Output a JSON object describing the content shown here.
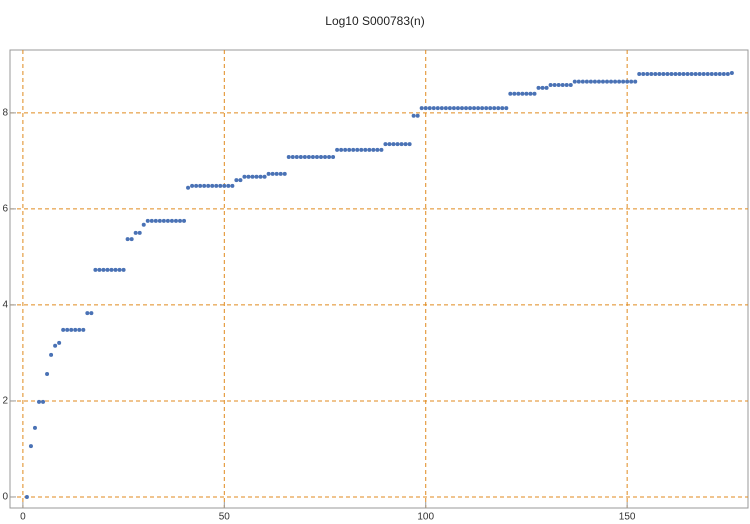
{
  "chart_data": {
    "type": "scatter",
    "title": "Log10 S000783(n)",
    "x": [
      1,
      2,
      3,
      4,
      5,
      6,
      7,
      8,
      9,
      10,
      11,
      12,
      13,
      14,
      15,
      16,
      17,
      18,
      19,
      20,
      21,
      22,
      23,
      24,
      25,
      26,
      27,
      28,
      29,
      30,
      31,
      32,
      33,
      34,
      35,
      36,
      37,
      38,
      39,
      40,
      41,
      42,
      43,
      44,
      45,
      46,
      47,
      48,
      49,
      50,
      51,
      52,
      53,
      54,
      55,
      56,
      57,
      58,
      59,
      60,
      61,
      62,
      63,
      64,
      65,
      66,
      67,
      68,
      69,
      70,
      71,
      72,
      73,
      74,
      75,
      76,
      77,
      78,
      79,
      80,
      81,
      82,
      83,
      84,
      85,
      86,
      87,
      88,
      89,
      90,
      91,
      92,
      93,
      94,
      95,
      96,
      97,
      98,
      99,
      100,
      101,
      102,
      103,
      104,
      105,
      106,
      107,
      108,
      109,
      110,
      111,
      112,
      113,
      114,
      115,
      116,
      117,
      118,
      119,
      120,
      121,
      122,
      123,
      124,
      125,
      126,
      127,
      128,
      129,
      130,
      131,
      132,
      133,
      134,
      135,
      136,
      137,
      138,
      139,
      140,
      141,
      142,
      143,
      144,
      145,
      146,
      147,
      148,
      149,
      150,
      151,
      152,
      153,
      154,
      155,
      156,
      157,
      158,
      159,
      160,
      161,
      162,
      163,
      164,
      165,
      166,
      167,
      168,
      169,
      170,
      171,
      172,
      173,
      174,
      175,
      176
    ],
    "values": [
      0,
      1.06,
      1.44,
      1.98,
      1.98,
      2.56,
      2.96,
      3.15,
      3.21,
      3.48,
      3.48,
      3.48,
      3.48,
      3.48,
      3.48,
      3.83,
      3.83,
      4.73,
      4.73,
      4.73,
      4.73,
      4.73,
      4.73,
      4.73,
      4.73,
      5.37,
      5.37,
      5.5,
      5.5,
      5.67,
      5.75,
      5.75,
      5.75,
      5.75,
      5.75,
      5.75,
      5.75,
      5.75,
      5.75,
      5.75,
      6.44,
      6.48,
      6.48,
      6.48,
      6.48,
      6.48,
      6.48,
      6.48,
      6.48,
      6.48,
      6.48,
      6.48,
      6.6,
      6.6,
      6.67,
      6.67,
      6.67,
      6.67,
      6.67,
      6.67,
      6.73,
      6.73,
      6.73,
      6.73,
      6.73,
      7.08,
      7.08,
      7.08,
      7.08,
      7.08,
      7.08,
      7.08,
      7.08,
      7.08,
      7.08,
      7.08,
      7.08,
      7.23,
      7.23,
      7.23,
      7.23,
      7.23,
      7.23,
      7.23,
      7.23,
      7.23,
      7.23,
      7.23,
      7.23,
      7.35,
      7.35,
      7.35,
      7.35,
      7.35,
      7.35,
      7.35,
      7.94,
      7.94,
      8.1,
      8.1,
      8.1,
      8.1,
      8.1,
      8.1,
      8.1,
      8.1,
      8.1,
      8.1,
      8.1,
      8.1,
      8.1,
      8.1,
      8.1,
      8.1,
      8.1,
      8.1,
      8.1,
      8.1,
      8.1,
      8.1,
      8.4,
      8.4,
      8.4,
      8.4,
      8.4,
      8.4,
      8.4,
      8.52,
      8.52,
      8.52,
      8.58,
      8.58,
      8.58,
      8.58,
      8.58,
      8.58,
      8.65,
      8.65,
      8.65,
      8.65,
      8.65,
      8.65,
      8.65,
      8.65,
      8.65,
      8.65,
      8.65,
      8.65,
      8.65,
      8.65,
      8.65,
      8.65,
      8.81,
      8.81,
      8.81,
      8.81,
      8.81,
      8.81,
      8.81,
      8.81,
      8.81,
      8.81,
      8.81,
      8.81,
      8.81,
      8.81,
      8.81,
      8.81,
      8.81,
      8.81,
      8.81,
      8.81,
      8.81,
      8.81,
      8.81,
      8.83
    ],
    "color": "#4a72b5",
    "grid_color": "#e08a1e",
    "grid": true,
    "xlim": [
      -3.2,
      180
    ],
    "ylim": [
      -0.23,
      9.31
    ],
    "xticks": [
      0,
      50,
      100,
      150
    ],
    "yticks": [
      0,
      2,
      4,
      6,
      8
    ]
  }
}
